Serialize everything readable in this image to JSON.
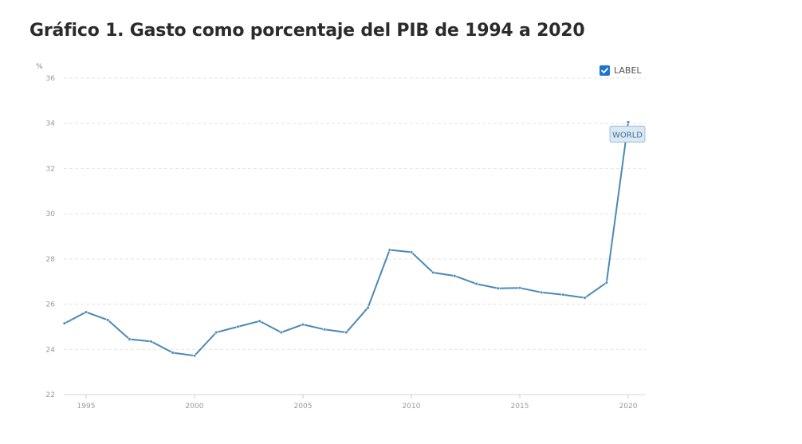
{
  "title": "Gráfico 1. Gasto como porcentaje del PIB de 1994 a 2020",
  "legend": {
    "label": "LABEL",
    "checked": true
  },
  "chart_data": {
    "type": "line",
    "ylabel": "%",
    "xlabel": "",
    "ylim": [
      22,
      36
    ],
    "yticks": [
      22,
      24,
      26,
      28,
      30,
      32,
      34,
      36
    ],
    "xlim": [
      1994,
      2020
    ],
    "xticks": [
      1995,
      2000,
      2005,
      2010,
      2015,
      2020
    ],
    "grid": true,
    "line_color": "#4a8ab5",
    "series": [
      {
        "name": "WORLD",
        "x": [
          1994,
          1995,
          1996,
          1997,
          1998,
          1999,
          2000,
          2001,
          2002,
          2003,
          2004,
          2005,
          2006,
          2007,
          2008,
          2009,
          2010,
          2011,
          2012,
          2013,
          2014,
          2015,
          2016,
          2017,
          2018,
          2019,
          2020
        ],
        "values": [
          25.15,
          25.65,
          25.3,
          24.45,
          24.35,
          23.85,
          23.72,
          24.75,
          25.0,
          25.25,
          24.75,
          25.1,
          24.88,
          24.75,
          25.85,
          28.4,
          28.3,
          27.4,
          27.25,
          26.9,
          26.7,
          26.72,
          26.52,
          26.42,
          26.28,
          26.95,
          34.05
        ]
      }
    ],
    "annotation": {
      "text": "WORLD"
    }
  }
}
